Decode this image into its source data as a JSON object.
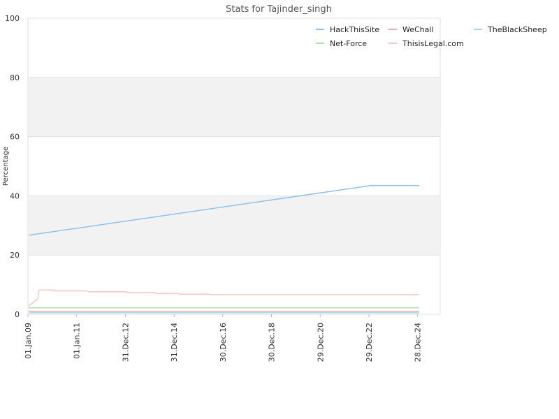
{
  "chart_data": {
    "type": "line",
    "title": "Stats for Tajinder_singh",
    "xlabel": "",
    "ylabel": "Percentage",
    "ylim": [
      0,
      100
    ],
    "yticks": [
      0,
      20,
      40,
      60,
      80,
      100
    ],
    "xlim": [
      "2009-01-01",
      "2025-12-01"
    ],
    "xticks": [
      {
        "date": "2009-01-01",
        "label": "01.Jan.09"
      },
      {
        "date": "2011-01-01",
        "label": "01.Jan.11"
      },
      {
        "date": "2012-12-31",
        "label": "31.Dec.12"
      },
      {
        "date": "2014-12-31",
        "label": "31.Dec.14"
      },
      {
        "date": "2016-12-30",
        "label": "30.Dec.16"
      },
      {
        "date": "2018-12-30",
        "label": "30.Dec.18"
      },
      {
        "date": "2020-12-29",
        "label": "29.Dec.20"
      },
      {
        "date": "2022-12-29",
        "label": "29.Dec.22"
      },
      {
        "date": "2024-12-28",
        "label": "28.Dec.24"
      }
    ],
    "grid": "horizontal alternating bands",
    "legend": "top-right",
    "series": [
      {
        "name": "HackThisSite",
        "color": "#8ec2ec",
        "points": [
          [
            "2009-01-15",
            26.7
          ],
          [
            "2023-02-01",
            43.5
          ],
          [
            "2025-01-20",
            43.5
          ]
        ]
      },
      {
        "name": "WeChall",
        "color": "#f2a3b8",
        "points": [
          [
            "2009-01-15",
            1.0
          ],
          [
            "2025-01-20",
            1.0
          ]
        ]
      },
      {
        "name": "TheBlackSheep",
        "color": "#a3dadb",
        "points": [
          [
            "2009-01-15",
            0.5
          ],
          [
            "2025-01-20",
            0.5
          ]
        ]
      },
      {
        "name": "Net-Force",
        "color": "#a5e6a5",
        "points": [
          [
            "2009-01-15",
            2.2
          ],
          [
            "2025-01-20",
            2.2
          ]
        ]
      },
      {
        "name": "ThisisLegal.com",
        "color": "#f5c6c4",
        "points": [
          [
            "2009-01-15",
            2.8
          ],
          [
            "2009-06-01",
            5.3
          ],
          [
            "2009-06-15",
            8.2
          ],
          [
            "2010-01-01",
            8.2
          ],
          [
            "2010-02-01",
            7.9
          ],
          [
            "2011-06-01",
            7.9
          ],
          [
            "2011-07-01",
            7.6
          ],
          [
            "2013-01-01",
            7.6
          ],
          [
            "2013-02-01",
            7.3
          ],
          [
            "2014-03-01",
            7.3
          ],
          [
            "2014-04-01",
            7.0
          ],
          [
            "2015-03-01",
            7.0
          ],
          [
            "2015-04-01",
            6.8
          ],
          [
            "2016-06-01",
            6.8
          ],
          [
            "2016-07-01",
            6.6
          ],
          [
            "2025-01-20",
            6.6
          ]
        ]
      }
    ]
  }
}
